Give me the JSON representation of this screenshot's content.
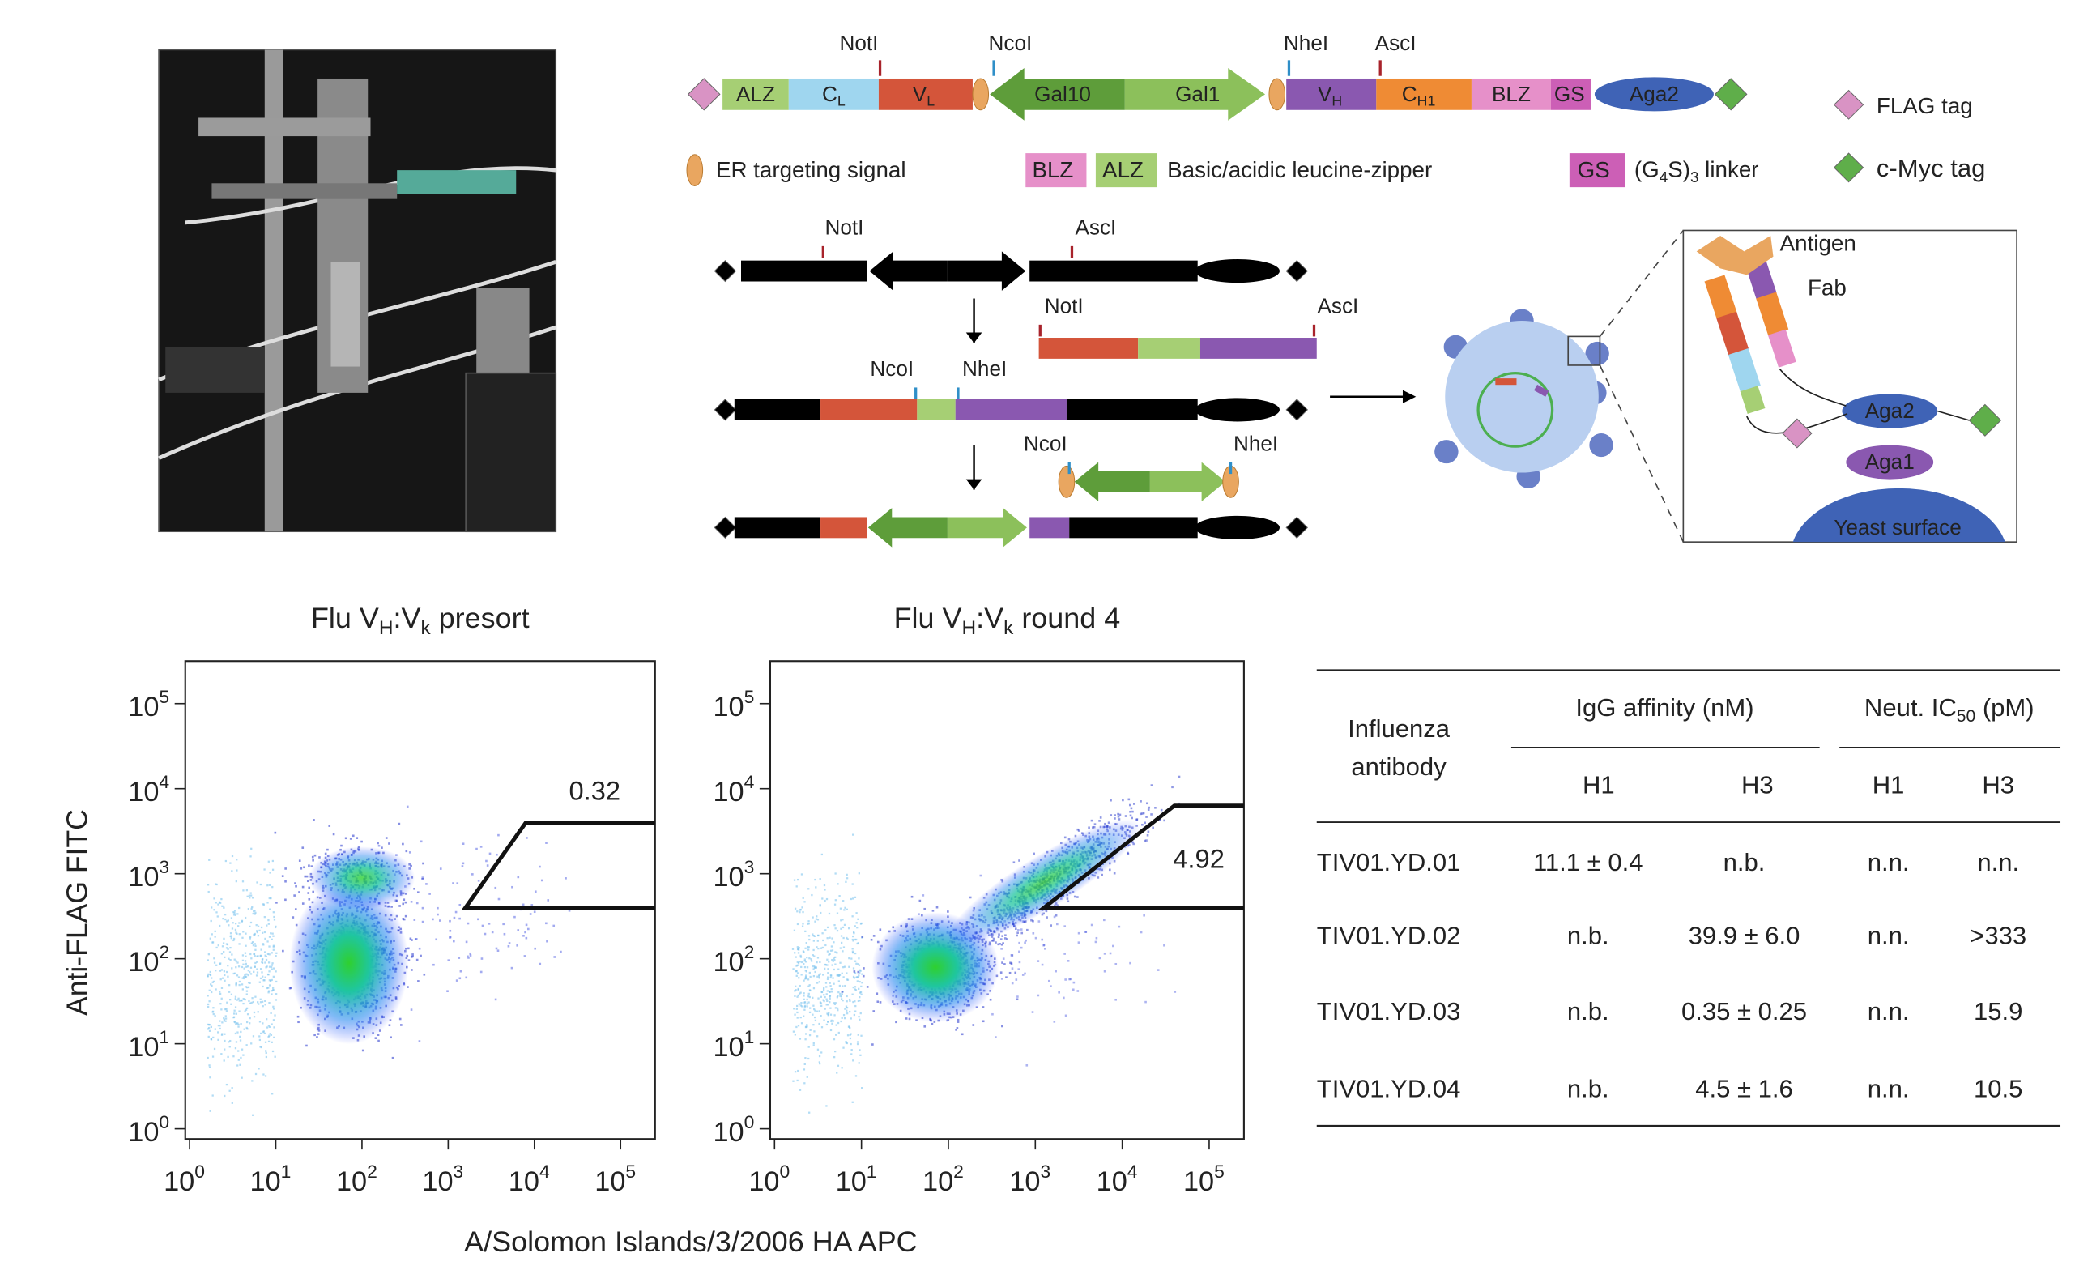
{
  "construct": {
    "sites": [
      "NotI",
      "NcoI",
      "NheI",
      "AscI"
    ],
    "blocks": [
      [
        {
          "t": "ALZ"
        }
      ],
      [
        {
          "t": "C"
        },
        {
          "sub": "L"
        }
      ],
      [
        {
          "t": "V"
        },
        {
          "sub": "L"
        }
      ],
      [
        {
          "t": "Gal10"
        }
      ],
      [
        {
          "t": "Gal1"
        }
      ],
      [
        {
          "t": "V"
        },
        {
          "sub": "H"
        }
      ],
      [
        {
          "t": "C"
        },
        {
          "sub": "H1"
        }
      ],
      [
        {
          "t": "BLZ"
        }
      ],
      [
        {
          "t": "GS"
        }
      ],
      [
        {
          "t": "Aga2"
        }
      ]
    ],
    "legend": {
      "flag": "FLAG tag",
      "myc": "c-Myc tag",
      "er": "ER targeting signal",
      "blz": "BLZ",
      "alz": "ALZ",
      "zipper": "Basic/acidic leucine-zipper",
      "gs": "GS",
      "linker": [
        {
          "t": "(G"
        },
        {
          "sub": "4"
        },
        {
          "t": "S)"
        },
        {
          "sub": "3"
        },
        {
          "t": " linker"
        }
      ]
    }
  },
  "cloning": {
    "sites": [
      "NotI",
      "AscI",
      "NotI",
      "AscI",
      "NcoI",
      "NheI",
      "NcoI",
      "NheI"
    ]
  },
  "display": {
    "antigen": "Antigen",
    "fab": "Fab",
    "aga2": "Aga2",
    "aga1": "Aga1",
    "surface": "Yeast surface"
  },
  "flow": {
    "tick_base": "10",
    "ticks": [
      0,
      1,
      2,
      3,
      4,
      5
    ],
    "xlim_log10": [
      -0.05,
      5.4
    ],
    "ylim_log10": [
      -0.12,
      5.5
    ],
    "y_label": "Anti-FLAG FITC",
    "x_label": "A/Solomon Islands/3/2006 HA APC",
    "plots": [
      {
        "title": [
          {
            "t": "Flu V"
          },
          {
            "sub": "H"
          },
          {
            "t": ":V"
          },
          {
            "sub": "k"
          },
          {
            "t": " presort"
          }
        ],
        "gate": "0.32"
      },
      {
        "title": [
          {
            "t": "Flu V"
          },
          {
            "sub": "H"
          },
          {
            "t": ":V"
          },
          {
            "sub": "k"
          },
          {
            "t": " round 4"
          }
        ],
        "gate": "4.92"
      }
    ]
  },
  "table": {
    "antibody_header": [
      "Influenza",
      "antibody"
    ],
    "affinity_header": "IgG affinity (nM)",
    "neut_header": [
      {
        "t": "Neut. IC"
      },
      {
        "sub": "50"
      },
      {
        "t": " (pM)"
      }
    ],
    "subheaders": [
      "H1",
      "H3",
      "H1",
      "H3"
    ],
    "rows": [
      [
        "TIV01.YD.01",
        "11.1 ± 0.4",
        "n.b.",
        "n.n.",
        "n.n."
      ],
      [
        "TIV01.YD.02",
        "n.b.",
        "39.9 ± 6.0",
        "n.n.",
        ">333"
      ],
      [
        "TIV01.YD.03",
        "n.b.",
        "0.35 ± 0.25",
        "n.n.",
        "15.9"
      ],
      [
        "TIV01.YD.04",
        "n.b.",
        "4.5 ± 1.6",
        "n.n.",
        "10.5"
      ]
    ]
  }
}
